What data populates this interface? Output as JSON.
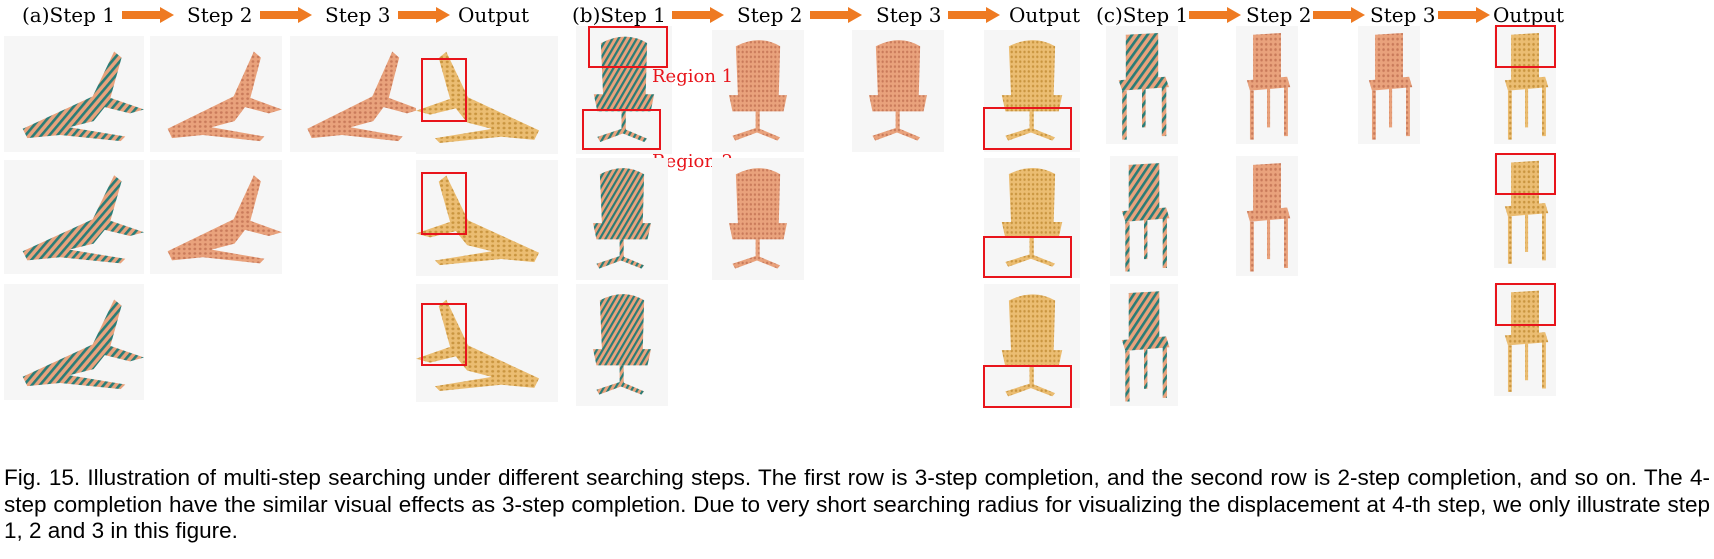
{
  "panels": [
    {
      "id": "a",
      "labels": [
        "(a)Step 1",
        "Step 2",
        "Step 3",
        "Output"
      ]
    },
    {
      "id": "b",
      "labels": [
        "(b)Step 1",
        "Step 2",
        "Step 3",
        "Output"
      ]
    },
    {
      "id": "c",
      "labels": [
        "(c)Step 1",
        "Step 2",
        "Step 3",
        "Output"
      ]
    }
  ],
  "annotations": {
    "region1": "Region 1",
    "region2": "Region 2"
  },
  "caption": "Fig. 15. Illustration of multi-step searching under different searching steps. The first row is 3-step completion, and the second row is 2-step completion, and so on. The 4-step completion have the similar visual effects as 3-step completion. Due to very short searching radius for visualizing the displacement at 4-th step, we only illustrate step 1, 2 and 3 in this figure.",
  "colors": {
    "arrow": "#ee7a22",
    "highlight_box": "#e8141b",
    "points_step": "#e9a27c",
    "points_output": "#e9b86a",
    "displacement_lines": "#2a7d77"
  }
}
